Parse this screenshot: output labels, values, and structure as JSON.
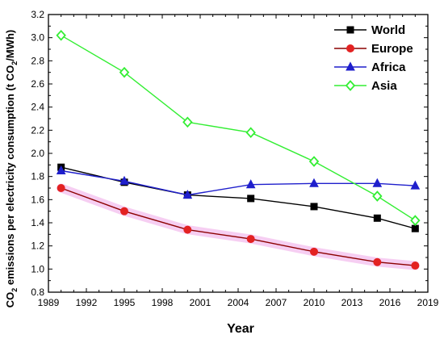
{
  "chart_data": {
    "type": "line",
    "xlabel": "Year",
    "ylabel": "CO2 emissions per electricity consumption (t CO2/MWh)",
    "ylabel_parts": {
      "a": "CO",
      "a_sub": "2",
      "b": " emissions per electricity consumption (t CO",
      "b_sub": "2",
      "c": "/MWh)"
    },
    "xlim": [
      1989,
      2019
    ],
    "ylim": [
      0.8,
      3.2
    ],
    "xticks": [
      1989,
      1992,
      1995,
      1998,
      2001,
      2004,
      2007,
      2010,
      2013,
      2016,
      2019
    ],
    "yticks": [
      0.8,
      1.0,
      1.2,
      1.4,
      1.6,
      1.8,
      2.0,
      2.2,
      2.4,
      2.6,
      2.8,
      3.0,
      3.2
    ],
    "x": [
      1990,
      1995,
      2000,
      2005,
      2010,
      2015,
      2018
    ],
    "series": [
      {
        "name": "World",
        "color": "#000000",
        "marker": "square",
        "values": [
          1.88,
          1.75,
          1.64,
          1.61,
          1.54,
          1.44,
          1.35
        ]
      },
      {
        "name": "Europe",
        "color": "#8b0000",
        "marker_color": "#e32222",
        "marker": "circle",
        "values": [
          1.7,
          1.5,
          1.34,
          1.26,
          1.15,
          1.06,
          1.03
        ]
      },
      {
        "name": "Africa",
        "color": "#1f1fcc",
        "marker": "triangle",
        "values": [
          1.85,
          1.76,
          1.64,
          1.73,
          1.74,
          1.74,
          1.72
        ]
      },
      {
        "name": "Asia",
        "color": "#33ee33",
        "marker": "diamond-open",
        "values": [
          3.02,
          2.7,
          2.27,
          2.18,
          1.93,
          1.63,
          1.42
        ]
      }
    ],
    "grid": false,
    "legend_position": "top-right"
  }
}
